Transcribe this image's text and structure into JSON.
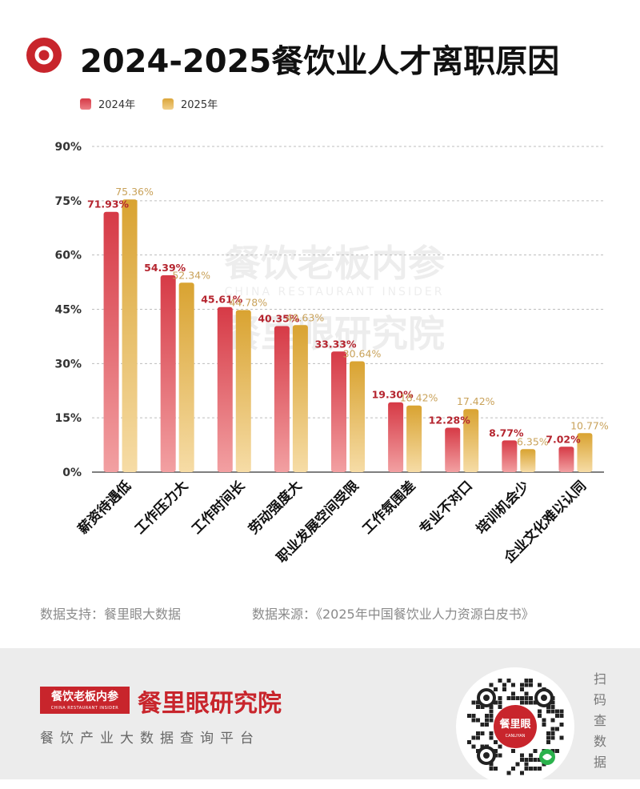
{
  "header": {
    "title": "2024-2025餐饮业人才离职原因"
  },
  "legend": {
    "items": [
      {
        "label": "2024年",
        "color": "#d63a46"
      },
      {
        "label": "2025年",
        "color": "#dba63a"
      }
    ]
  },
  "chart_data": {
    "type": "bar",
    "title": "2024-2025餐饮业人才离职原因",
    "xlabel": "",
    "ylabel": "",
    "ylim": [
      0,
      90
    ],
    "yticks": [
      "0%",
      "15%",
      "30%",
      "45%",
      "60%",
      "75%",
      "90%"
    ],
    "ytick_values": [
      0,
      15,
      30,
      45,
      60,
      75,
      90
    ],
    "grid": true,
    "legend_position": "top-left",
    "categories": [
      "薪资待遇低",
      "工作压力大",
      "工作时间长",
      "劳动强度大",
      "职业发展空间受限",
      "工作氛围差",
      "专业不对口",
      "培训机会少",
      "企业文化难以认同"
    ],
    "series": [
      {
        "name": "2024年",
        "values": [
          71.93,
          54.39,
          45.61,
          40.35,
          33.33,
          19.3,
          12.28,
          8.77,
          7.02
        ],
        "labels": [
          "71.93%",
          "54.39%",
          "45.61%",
          "40.35%",
          "33.33%",
          "19.30%",
          "12.28%",
          "8.77%",
          "7.02%"
        ],
        "color": "#d63a46"
      },
      {
        "name": "2025年",
        "values": [
          75.36,
          52.34,
          44.78,
          40.63,
          30.64,
          18.42,
          17.42,
          6.35,
          10.77
        ],
        "labels": [
          "75.36%",
          "52.34%",
          "44.78%",
          "40.63%",
          "30.64%",
          "18.42%",
          "17.42%",
          "6.35%",
          "10.77%"
        ],
        "color": "#dba63a"
      }
    ]
  },
  "watermark": {
    "line1": "餐饮老板内参",
    "line2": "CHINA RESTAURANT INSIDER",
    "line3": "餐里眼研究院"
  },
  "sources": {
    "support": "数据支持：餐里眼大数据",
    "origin": "数据来源：《2025年中国餐饮业人力资源白皮书》"
  },
  "footer": {
    "badge_main": "餐饮老板内参",
    "badge_sub": "CHINA RESTAURANT INSIDER",
    "brand_name": "餐里眼研究院",
    "platform": "餐饮产业大数据查询平台",
    "qr_center_label": "餐里眼",
    "qr_center_sub": "CANLIYAN",
    "scan_label": "扫码查数据"
  },
  "colors": {
    "accent_red": "#c8252c",
    "bar_2024": "#d63a46",
    "bar_2025": "#dba63a",
    "label_2024": "#b5252f",
    "label_2025": "#c9a25a"
  }
}
